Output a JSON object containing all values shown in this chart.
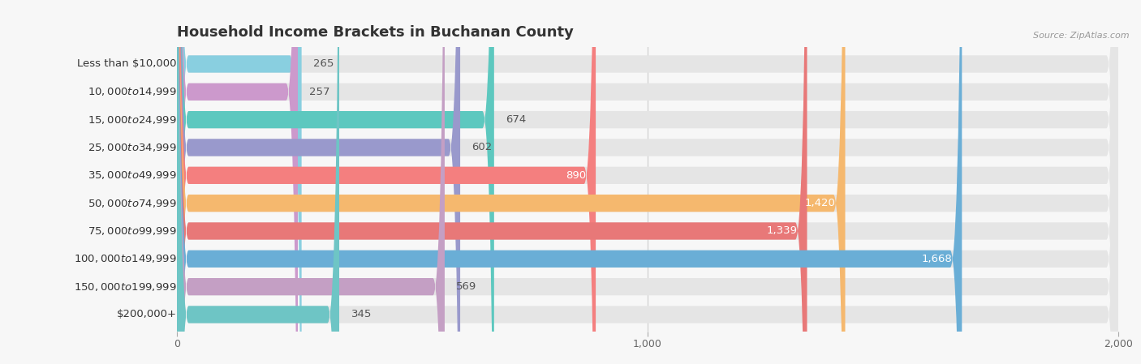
{
  "title": "Household Income Brackets in Buchanan County",
  "source": "Source: ZipAtlas.com",
  "categories": [
    "Less than $10,000",
    "$10,000 to $14,999",
    "$15,000 to $24,999",
    "$25,000 to $34,999",
    "$35,000 to $49,999",
    "$50,000 to $74,999",
    "$75,000 to $99,999",
    "$100,000 to $149,999",
    "$150,000 to $199,999",
    "$200,000+"
  ],
  "values": [
    265,
    257,
    674,
    602,
    890,
    1420,
    1339,
    1668,
    569,
    345
  ],
  "bar_colors": [
    "#89cfe0",
    "#cc99cc",
    "#5dc8bf",
    "#9999cc",
    "#f47f7f",
    "#f5b86e",
    "#e87878",
    "#6aaed6",
    "#c49fc4",
    "#6ec5c5"
  ],
  "value_inside_color": "#ffffff",
  "value_outside_color": "#555555",
  "inside_threshold": 700,
  "xlim_max": 2000,
  "background_color": "#f7f7f7",
  "bar_bg_color": "#e5e5e5",
  "title_fontsize": 13,
  "label_fontsize": 9.5,
  "value_fontsize": 9.5,
  "tick_fontsize": 9
}
